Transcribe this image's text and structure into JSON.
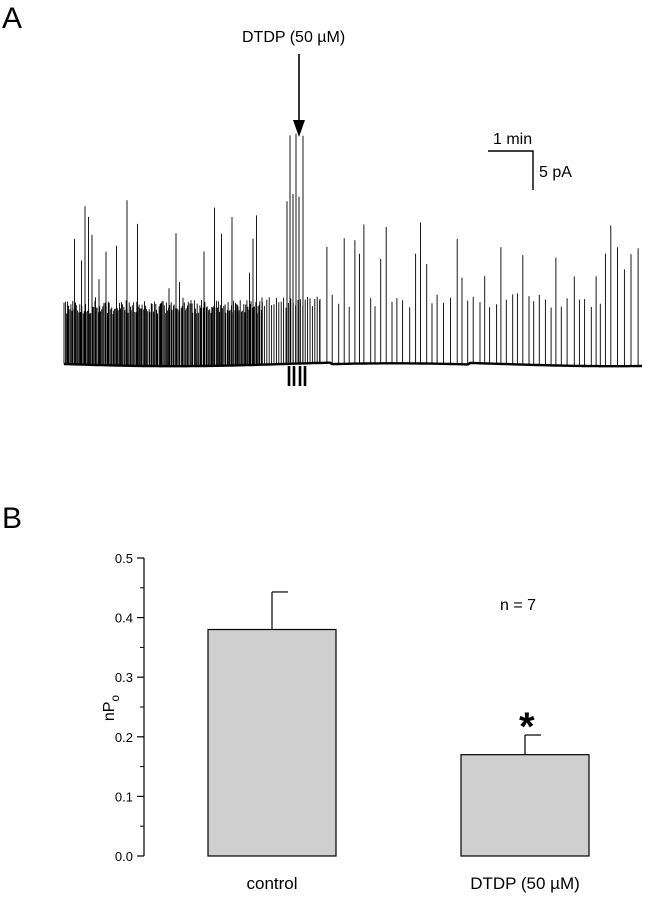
{
  "figure": {
    "panel_a_letter": "A",
    "panel_b_letter": "B"
  },
  "trace": {
    "drug_label": "DTDP (50 µM)",
    "scale_time": "1 min",
    "scale_current": "5 pA"
  },
  "colors": {
    "bar_fill": "#cfcfcf",
    "ink": "#000000"
  },
  "chart_data": {
    "type": "bar",
    "categories": [
      "control",
      "DTDP (50 µM)"
    ],
    "values": [
      0.38,
      0.17
    ],
    "errors": [
      0.063,
      0.033
    ],
    "ylabel": "nP",
    "ylabel_subscript": "o",
    "ylim": [
      0.0,
      0.5
    ],
    "yticks": [
      "0.0",
      "0.1",
      "0.2",
      "0.3",
      "0.4",
      "0.5"
    ],
    "annotation": "n = 7",
    "significance_marker": "*",
    "grid": false
  }
}
